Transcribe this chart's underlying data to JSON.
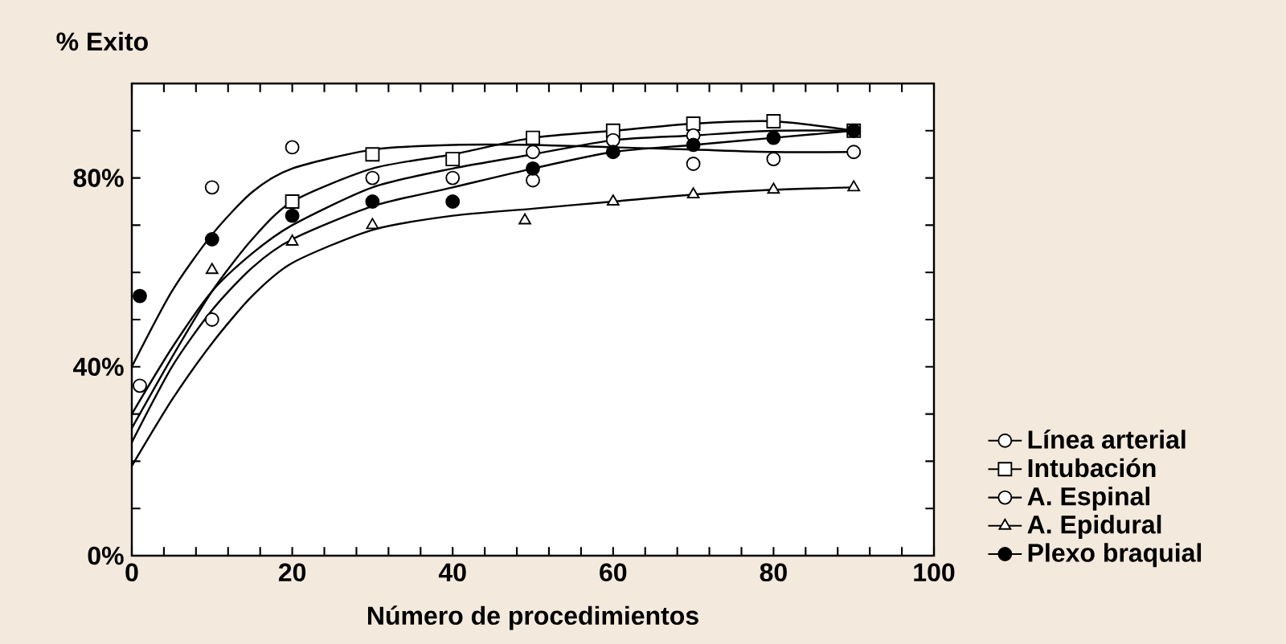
{
  "chart_data": {
    "type": "scatter",
    "ylabel": "% Exito",
    "xlabel": "Número de procedimientos",
    "xlim": [
      0,
      100
    ],
    "ylim": [
      0,
      100
    ],
    "xticks": [
      0,
      {
        "value": 4,
        "label": null
      },
      {
        "value": 8,
        "label": null
      },
      {
        "value": 12,
        "label": null
      },
      {
        "value": 16,
        "label": null
      },
      20,
      {
        "value": 24,
        "label": null
      },
      {
        "value": 28,
        "label": null
      },
      {
        "value": 32,
        "label": null
      },
      {
        "value": 36,
        "label": null
      },
      40,
      {
        "value": 44,
        "label": null
      },
      {
        "value": 48,
        "label": null
      },
      {
        "value": 52,
        "label": null
      },
      {
        "value": 56,
        "label": null
      },
      60,
      {
        "value": 64,
        "label": null
      },
      {
        "value": 68,
        "label": null
      },
      {
        "value": 72,
        "label": null
      },
      {
        "value": 76,
        "label": null
      },
      80,
      {
        "value": 84,
        "label": null
      },
      {
        "value": 88,
        "label": null
      },
      {
        "value": 92,
        "label": null
      },
      {
        "value": 96,
        "label": null
      },
      100
    ],
    "yticks": [
      {
        "value": 0,
        "label": "0%"
      },
      {
        "value": 10,
        "label": null
      },
      {
        "value": 20,
        "label": null
      },
      {
        "value": 30,
        "label": null
      },
      {
        "value": 40,
        "label": "40%"
      },
      {
        "value": 50,
        "label": null
      },
      {
        "value": 60,
        "label": null
      },
      {
        "value": 70,
        "label": null
      },
      {
        "value": 80,
        "label": "80%"
      },
      {
        "value": 90,
        "label": null
      }
    ],
    "grid": false,
    "legend": "right",
    "series": [
      {
        "name": "Línea arterial",
        "marker": "circle",
        "color": "#ffffff",
        "x": [
          1,
          10,
          20,
          50,
          70,
          80,
          90
        ],
        "values": [
          36,
          78,
          86.5,
          79.5,
          83,
          84,
          85.5
        ]
      },
      {
        "name": "Intubación",
        "marker": "square",
        "color": "#ffffff",
        "x": [
          20,
          30,
          40,
          50,
          60,
          70,
          80,
          90
        ],
        "values": [
          75,
          85,
          84,
          88.5,
          90,
          91.5,
          92,
          90
        ]
      },
      {
        "name": "A. Espinal",
        "marker": "circle",
        "color": "#ffffff",
        "x": [
          10,
          30,
          40,
          50,
          60,
          70
        ],
        "values": [
          50,
          80,
          80,
          85.5,
          88,
          89
        ]
      },
      {
        "name": "A. Epidural",
        "marker": "triangle",
        "color": "#ffffff",
        "x": [
          10,
          20,
          30,
          49,
          60,
          70,
          80,
          90
        ],
        "values": [
          60.5,
          66.5,
          70,
          71,
          75,
          76.5,
          77.5,
          78
        ]
      },
      {
        "name": "Plexo braquial",
        "marker": "circle",
        "color": "#000000",
        "x": [
          1,
          10,
          20,
          30,
          40,
          50,
          60,
          70,
          80,
          90
        ],
        "values": [
          55,
          67,
          72,
          75,
          75,
          82,
          85.5,
          87,
          88.5,
          90
        ]
      },
      {
        "type": "line",
        "marker": "none",
        "line_style": "solid",
        "color": "#000000",
        "x": [
          0,
          5,
          10,
          15,
          20,
          30,
          40,
          50,
          60,
          70,
          80,
          90
        ],
        "values": [
          40,
          56,
          68,
          77,
          82,
          86,
          87,
          87,
          86.5,
          86,
          85.5,
          85.5
        ]
      },
      {
        "type": "line",
        "marker": "none",
        "line_style": "solid",
        "color": "#000000",
        "x": [
          0,
          5,
          10,
          15,
          20,
          30,
          40,
          50,
          60,
          70,
          80,
          90
        ],
        "values": [
          27,
          42,
          56,
          67,
          75,
          82,
          85,
          88.5,
          90,
          91.5,
          92,
          90
        ]
      },
      {
        "type": "line",
        "marker": "none",
        "line_style": "solid",
        "color": "#000000",
        "x": [
          0,
          5,
          10,
          15,
          20,
          30,
          40,
          50,
          60,
          70,
          80,
          90
        ],
        "values": [
          30,
          44,
          56,
          64,
          70,
          78,
          82,
          85,
          88,
          89,
          90,
          90
        ]
      },
      {
        "type": "line",
        "marker": "none",
        "line_style": "solid",
        "color": "#000000",
        "x": [
          0,
          5,
          10,
          15,
          20,
          30,
          40,
          50,
          60,
          70,
          80,
          90
        ],
        "values": [
          24,
          40,
          52,
          61,
          67,
          74,
          78,
          82,
          85.5,
          87,
          88.5,
          90
        ]
      },
      {
        "type": "line",
        "marker": "none",
        "line_style": "solid",
        "color": "#000000",
        "x": [
          0,
          5,
          10,
          15,
          20,
          30,
          40,
          50,
          60,
          70,
          80,
          90
        ],
        "values": [
          19,
          33,
          45,
          55,
          62,
          69,
          72,
          73.5,
          75,
          76.5,
          77.5,
          78
        ]
      }
    ]
  }
}
